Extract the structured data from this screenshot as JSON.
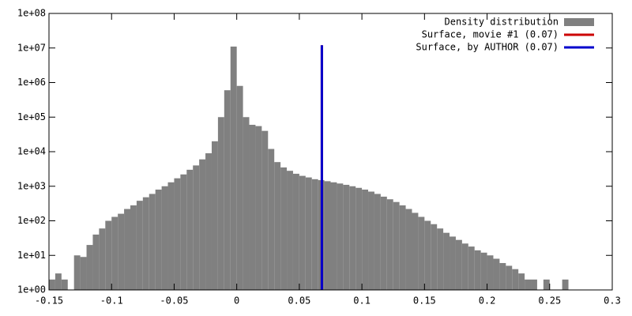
{
  "chart_data": {
    "type": "histogram",
    "log_y": true,
    "legend": "top-right",
    "bins": [
      -0.15,
      -0.145,
      -0.14,
      -0.135,
      -0.13,
      -0.125,
      -0.12,
      -0.115,
      -0.11,
      -0.105,
      -0.1,
      -0.095,
      -0.09,
      -0.085,
      -0.08,
      -0.075,
      -0.07,
      -0.065,
      -0.06,
      -0.055,
      -0.05,
      -0.045,
      -0.04,
      -0.035,
      -0.03,
      -0.025,
      -0.02,
      -0.015,
      -0.01,
      -0.005,
      0,
      0.005,
      0.01,
      0.015,
      0.02,
      0.025,
      0.03,
      0.035,
      0.04,
      0.045,
      0.05,
      0.055,
      0.06,
      0.065,
      0.07,
      0.075,
      0.08,
      0.085,
      0.09,
      0.095,
      0.1,
      0.105,
      0.11,
      0.115,
      0.12,
      0.125,
      0.13,
      0.135,
      0.14,
      0.145,
      0.15,
      0.155,
      0.16,
      0.165,
      0.17,
      0.175,
      0.18,
      0.185,
      0.19,
      0.195,
      0.2,
      0.205,
      0.21,
      0.215,
      0.22,
      0.225,
      0.23,
      0.235,
      0.24,
      0.245,
      0.25,
      0.255,
      0.26,
      0.265,
      0.27
    ],
    "series": [
      {
        "name": "Density distribution",
        "color": "#808080",
        "values": [
          2,
          3,
          2,
          0,
          10,
          9,
          20,
          40,
          60,
          100,
          130,
          160,
          220,
          280,
          380,
          480,
          600,
          800,
          1000,
          1300,
          1700,
          2200,
          3000,
          4000,
          6000,
          9000,
          20000,
          100000,
          600000,
          11000000,
          800000,
          100000,
          60000,
          55000,
          40000,
          12000,
          5000,
          3500,
          2800,
          2300,
          2000,
          1800,
          1600,
          1500,
          1400,
          1300,
          1200,
          1100,
          1000,
          900,
          800,
          700,
          600,
          500,
          420,
          350,
          280,
          220,
          170,
          130,
          100,
          80,
          60,
          45,
          35,
          28,
          22,
          18,
          14,
          12,
          10,
          8,
          6,
          5,
          4,
          3,
          2,
          2,
          0,
          2,
          0,
          0,
          2,
          0
        ]
      },
      {
        "name": "Surface, movie #1 (0.07)",
        "color": "#cc0000",
        "x": 0.068,
        "ymax": 12000000
      },
      {
        "name": "Surface, by AUTHOR (0.07)",
        "color": "#0000cc",
        "x": 0.068,
        "ymax": 12000000
      }
    ],
    "xlim": [
      -0.15,
      0.3
    ],
    "xticks": [
      -0.15,
      -0.1,
      -0.05,
      0,
      0.05,
      0.1,
      0.15,
      0.2,
      0.25,
      0.3
    ],
    "ylim": [
      1,
      100000000
    ],
    "yticks": [
      {
        "value": 1,
        "label": "1e+00"
      },
      {
        "value": 10,
        "label": "1e+01"
      },
      {
        "value": 100,
        "label": "1e+02"
      },
      {
        "value": 1000,
        "label": "1e+03"
      },
      {
        "value": 10000,
        "label": "1e+04"
      },
      {
        "value": 100000,
        "label": "1e+05"
      },
      {
        "value": 1000000,
        "label": "1e+06"
      },
      {
        "value": 10000000,
        "label": "1e+07"
      },
      {
        "value": 100000000,
        "label": "1e+08"
      }
    ]
  }
}
